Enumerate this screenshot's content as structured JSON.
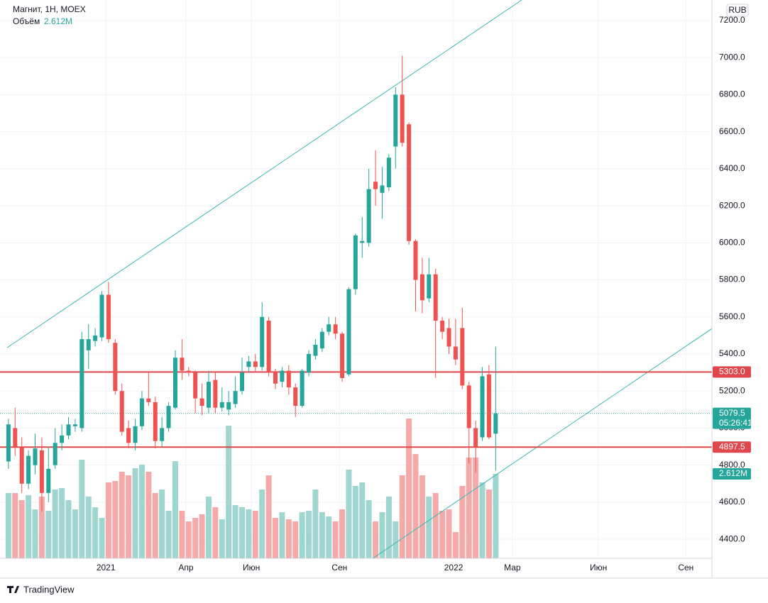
{
  "chart_data": {
    "type": "candlestick",
    "title": "Магнит, 1Н, MOEX",
    "volume_title": "Объём",
    "currency": "RUB",
    "countdown": "05:26:41",
    "up_color": "#26a69a",
    "down_color": "#ef5350",
    "up_volume_color": "#9fd6d0",
    "down_volume_color": "#f5a9a8",
    "open": [
      4820,
      5000,
      4900,
      4700,
      4800,
      4880,
      4650,
      4800,
      4920,
      4960,
      5010,
      5000,
      5420,
      5470,
      5490,
      5720,
      5460,
      5200,
      5000,
      4920,
      5010,
      5160,
      5140,
      4930,
      5000,
      5110,
      5380,
      5310,
      5300,
      5160,
      5110,
      5260,
      5110,
      5100,
      5130,
      5200,
      5330,
      5360,
      5330,
      5580,
      5300,
      5250,
      5310,
      5220,
      5120,
      5300,
      5390,
      5430,
      5520,
      5560,
      5510,
      5290,
      5750,
      6000,
      6000,
      6330,
      6270,
      6300,
      6520,
      6800,
      6640,
      6010,
      5830,
      5700,
      5830,
      5580,
      5540,
      5440,
      5540,
      5230,
      5000,
      4950,
      5290,
      4970
    ],
    "high": [
      5050,
      5110,
      4950,
      4880,
      4970,
      4950,
      4900,
      5000,
      5020,
      5060,
      5050,
      5520,
      5560,
      5540,
      5740,
      5790,
      5480,
      5240,
      5040,
      5050,
      5200,
      5300,
      5170,
      5060,
      5140,
      5420,
      5480,
      5330,
      5310,
      5240,
      5310,
      5300,
      5220,
      5200,
      5280,
      5380,
      5390,
      5400,
      5680,
      5600,
      5320,
      5330,
      5340,
      5240,
      5320,
      5420,
      5480,
      5540,
      5600,
      5600,
      5520,
      5760,
      6050,
      6140,
      6400,
      6500,
      6410,
      6480,
      6840,
      7010,
      6650,
      6020,
      5920,
      5920,
      5860,
      5600,
      5590,
      5590,
      5650,
      5250,
      5040,
      5330,
      5340,
      5440
    ],
    "low": [
      4780,
      4850,
      4650,
      4670,
      4750,
      4550,
      4600,
      4780,
      4880,
      4940,
      4980,
      4980,
      5320,
      5440,
      5470,
      5460,
      5180,
      4960,
      4890,
      4880,
      4990,
      5120,
      4890,
      4900,
      4980,
      5100,
      5260,
      5280,
      5080,
      5070,
      5080,
      5080,
      5090,
      5070,
      5110,
      5180,
      5300,
      5300,
      5310,
      5280,
      5210,
      5220,
      5180,
      5060,
      5110,
      5280,
      5370,
      5410,
      5500,
      5480,
      5250,
      5280,
      5720,
      5920,
      5980,
      6200,
      6130,
      6280,
      6400,
      6520,
      5990,
      5630,
      5620,
      5680,
      5270,
      5480,
      5400,
      5340,
      5210,
      4810,
      4760,
      4930,
      4940,
      4770
    ],
    "close": [
      5020,
      4900,
      4700,
      4850,
      4890,
      4650,
      4780,
      4920,
      4960,
      5020,
      5020,
      5480,
      5480,
      5500,
      5720,
      5480,
      5200,
      4980,
      4920,
      5010,
      5160,
      5140,
      4930,
      5000,
      5120,
      5380,
      5310,
      5300,
      5160,
      5120,
      5250,
      5110,
      5140,
      5140,
      5200,
      5300,
      5360,
      5330,
      5600,
      5300,
      5240,
      5310,
      5220,
      5120,
      5310,
      5400,
      5450,
      5520,
      5560,
      5510,
      5270,
      5750,
      6040,
      6010,
      6290,
      6290,
      6310,
      6460,
      6800,
      6540,
      6010,
      5800,
      5690,
      5830,
      5580,
      5520,
      5440,
      5370,
      5230,
      5000,
      4900,
      5280,
      4950,
      5079.5
    ],
    "volume": [
      2019000,
      2019000,
      1800000,
      1954000,
      1515000,
      1910000,
      1471000,
      2129000,
      2173000,
      1800000,
      1515000,
      3051000,
      1910000,
      1580000,
      1251000,
      2349000,
      2393000,
      2678000,
      2568000,
      2788000,
      2897000,
      2678000,
      2019000,
      2129000,
      1471000,
      3007000,
      1471000,
      1141000,
      1251000,
      1361000,
      1910000,
      1580000,
      1207000,
      4105000,
      1646000,
      1580000,
      1515000,
      1471000,
      2129000,
      2568000,
      1251000,
      1427000,
      1207000,
      1141000,
      1427000,
      1471000,
      2129000,
      1427000,
      1295000,
      1141000,
      1515000,
      2744000,
      2239000,
      2349000,
      1800000,
      1141000,
      1427000,
      1910000,
      1141000,
      2568000,
      4324000,
      3227000,
      2568000,
      1910000,
      2019000,
      1471000,
      1515000,
      812000,
      2239000,
      3117000,
      3117000,
      2349000,
      2129000,
      2612000
    ],
    "volume_labels": [
      null,
      null,
      null,
      null,
      null,
      null,
      null,
      null,
      null,
      null,
      null,
      null,
      null,
      null,
      null,
      null,
      null,
      null,
      null,
      null,
      null,
      null,
      null,
      null,
      null,
      null,
      null,
      null,
      null,
      null,
      null,
      null,
      null,
      null,
      null,
      null,
      null,
      null,
      null,
      null,
      null,
      null,
      null,
      null,
      null,
      null,
      null,
      null,
      null,
      null,
      null,
      null,
      null,
      null,
      null,
      null,
      null,
      null,
      null,
      null,
      null,
      null,
      null,
      null,
      null,
      null,
      null,
      null,
      null,
      null,
      null,
      null,
      null,
      "2.612M"
    ],
    "xlim": [
      -0.2,
      105.4
    ],
    "xticks": [
      {
        "value": 14.6,
        "label": "2021"
      },
      {
        "value": 26.6,
        "label": "Апр"
      },
      {
        "value": 36.4,
        "label": "Июн"
      },
      {
        "value": 49.6,
        "label": "Сен"
      },
      {
        "value": 66.7,
        "label": "2022"
      },
      {
        "value": 75.5,
        "label": "Мар"
      },
      {
        "value": 88.4,
        "label": "Июн"
      },
      {
        "value": 101.5,
        "label": "Сен"
      }
    ],
    "ylim": [
      4297,
      7311
    ],
    "yticks": [
      {
        "value": 4400,
        "label": "4400.0"
      },
      {
        "value": 4600,
        "label": "4600.0"
      },
      {
        "value": 4800,
        "label": "4800.0"
      },
      {
        "value": 5000,
        "label": "5000.0"
      },
      {
        "value": 5200,
        "label": "5200.0"
      },
      {
        "value": 5400,
        "label": "5400.0"
      },
      {
        "value": 5600,
        "label": "5600.0"
      },
      {
        "value": 5800,
        "label": "5800.0"
      },
      {
        "value": 6000,
        "label": "6000.0"
      },
      {
        "value": 6200,
        "label": "6200.0"
      },
      {
        "value": 6400,
        "label": "6400.0"
      },
      {
        "value": 6600,
        "label": "6600.0"
      },
      {
        "value": 6800,
        "label": "6800.0"
      },
      {
        "value": 7000,
        "label": "7000.0"
      },
      {
        "value": 7200,
        "label": "7200.0"
      }
    ],
    "grid": true,
    "hlines": [
      {
        "value": 5303,
        "label": "5303.0",
        "color": "#e0474c"
      },
      {
        "value": 4897.5,
        "label": "4897.5",
        "color": "#e0474c"
      }
    ],
    "trendlines": [
      {
        "x": [
          -0.2,
          76.9
        ],
        "y": [
          5434,
          7311
        ],
        "color": "#3bb8b0"
      },
      {
        "x": [
          54.6,
          105.4
        ],
        "y": [
          4297,
          5537
        ],
        "color": "#3bb8b0"
      }
    ],
    "brand": "TradingView"
  }
}
